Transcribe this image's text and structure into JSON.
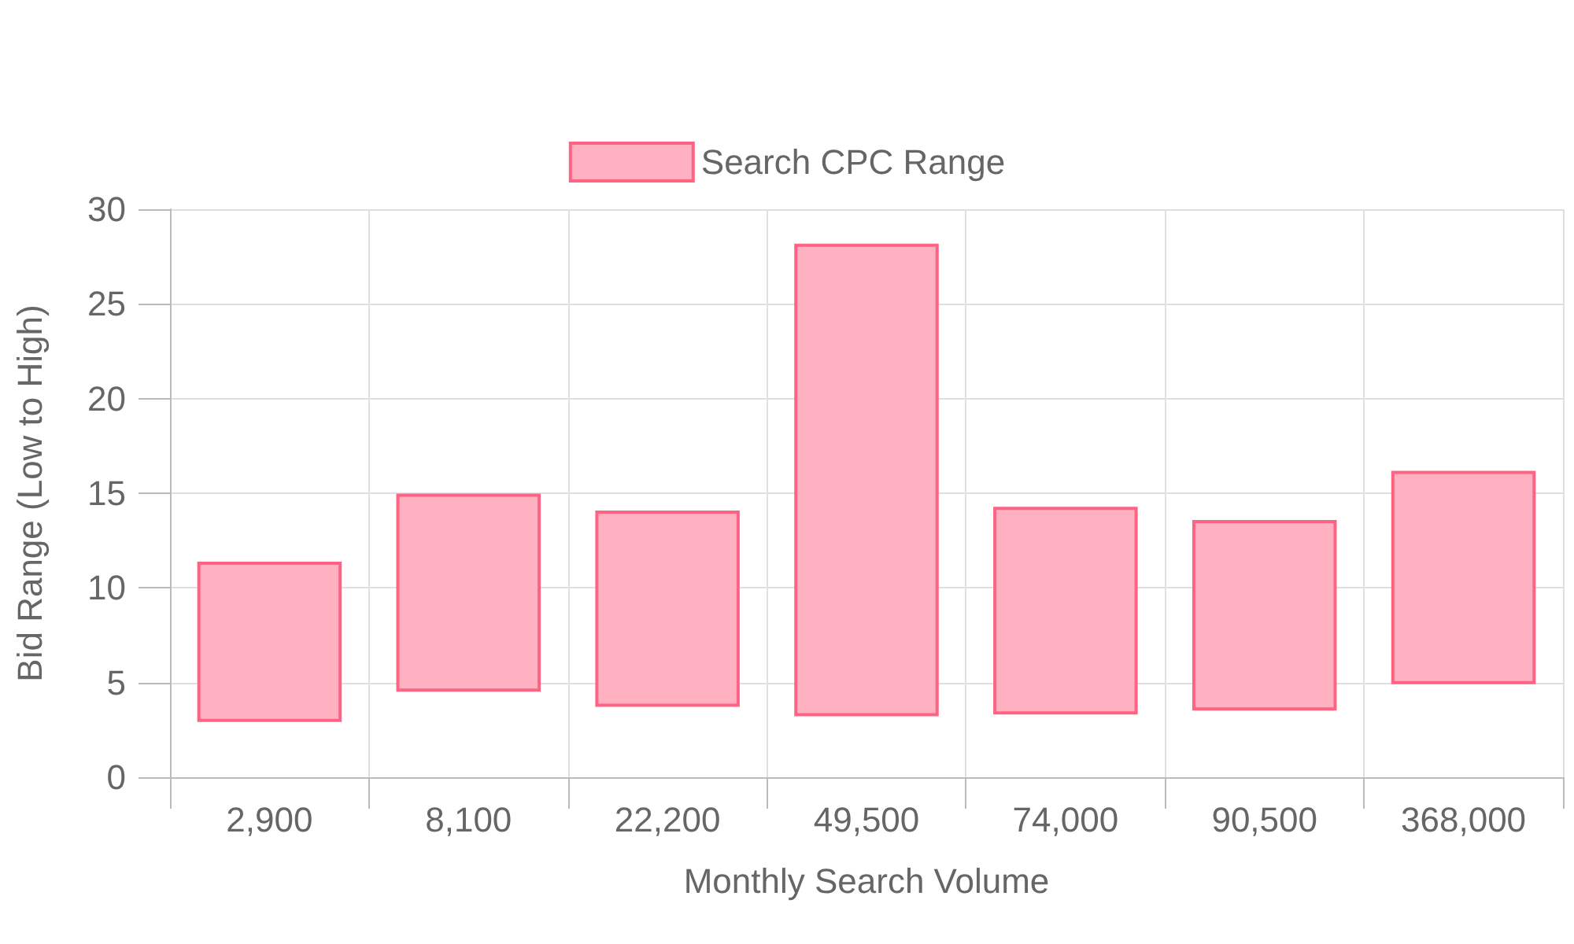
{
  "chart_data": {
    "type": "bar",
    "xlabel": "Monthly Search Volume",
    "ylabel": "Bid Range (Low to High)",
    "categories": [
      "2,900",
      "8,100",
      "22,200",
      "49,500",
      "74,000",
      "90,500",
      "368,000"
    ],
    "series": [
      {
        "name": "Search CPC Range",
        "color": "#ffb1c1",
        "base": [
          3.0,
          4.6,
          3.8,
          3.3,
          3.4,
          3.6,
          5.0
        ],
        "values": [
          8.3,
          10.3,
          10.2,
          24.8,
          10.8,
          9.9,
          11.1
        ]
      }
    ],
    "ylim": [
      0,
      30
    ],
    "yticks": [
      0,
      5,
      10,
      15,
      20,
      25,
      30
    ],
    "grid": true,
    "legend": "top"
  }
}
